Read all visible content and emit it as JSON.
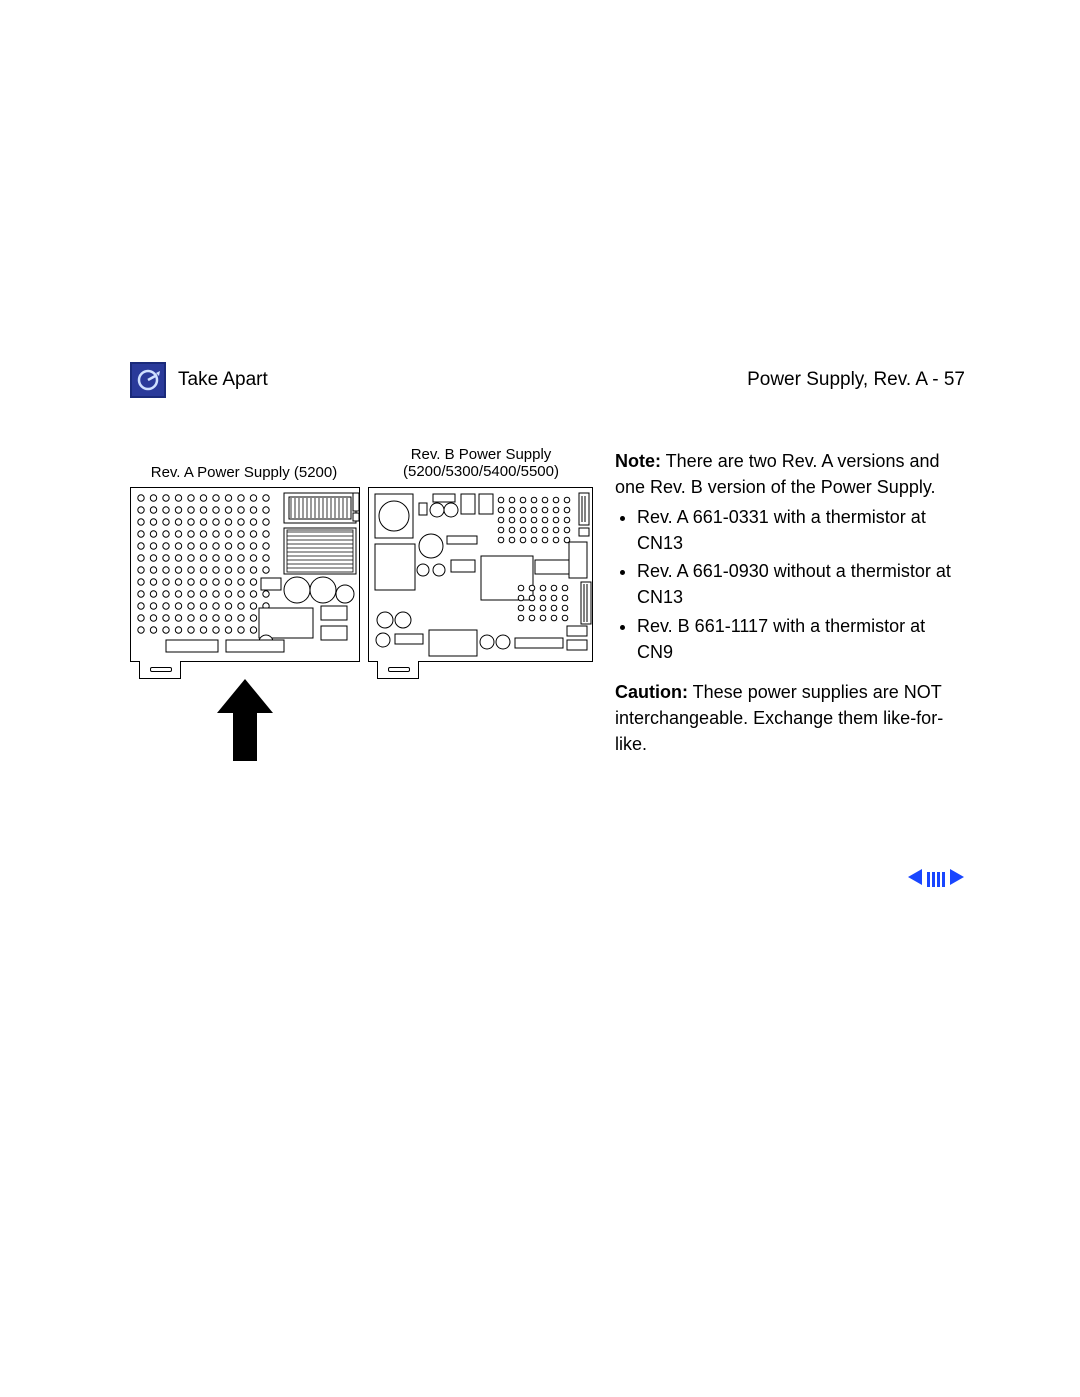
{
  "header": {
    "section": "Take Apart",
    "page_title": "Power Supply, Rev. A",
    "page_number": "57"
  },
  "diagram": {
    "label_a": "Rev. A Power Supply  (5200)",
    "label_b_line1": "Rev. B Power Supply",
    "label_b_line2": "(5200/5300/5400/5500)",
    "arrow_color": "#000000"
  },
  "body": {
    "note_label": "Note:",
    "note_text": " There are two Rev. A versions and one Rev. B version of the Power Supply.",
    "bullets": [
      "Rev. A 661-0331 with a thermistor at CN13",
      "Rev. A 661-0930 without a thermistor at CN13",
      "Rev. B 661-1117 with a thermistor at CN9"
    ],
    "caution_label": "Caution:",
    "caution_text": " These power supplies are NOT interchangeable. Exchange them like-for-like."
  },
  "colors": {
    "icon_bg": "#2a3a9a",
    "icon_border": "#1a2a7a",
    "nav_blue": "#1946ff",
    "text": "#000000",
    "background": "#ffffff"
  }
}
